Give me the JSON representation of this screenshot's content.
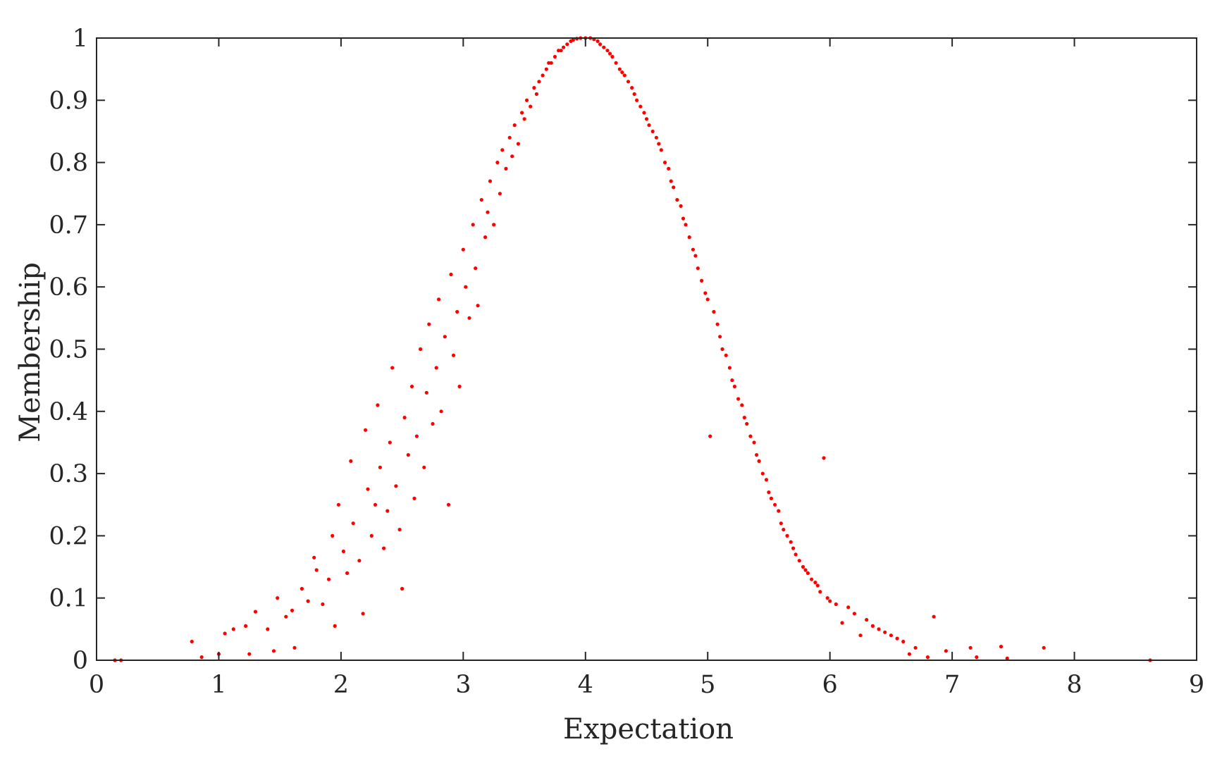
{
  "chart_data": {
    "type": "scatter",
    "title": "",
    "xlabel": "Expectation",
    "ylabel": "Membership",
    "xlim": [
      0,
      9
    ],
    "ylim": [
      0,
      1
    ],
    "x_ticks": [
      "0",
      "1",
      "2",
      "3",
      "4",
      "5",
      "6",
      "7",
      "8",
      "9"
    ],
    "y_ticks": [
      "0",
      "0.1",
      "0.2",
      "0.3",
      "0.4",
      "0.5",
      "0.6",
      "0.7",
      "0.8",
      "0.9",
      "1"
    ],
    "grid": false,
    "legend": "none",
    "marker_color": "#ff0000",
    "series": [
      {
        "points": [
          [
            0.15,
            0.0
          ],
          [
            0.2,
            0.0
          ],
          [
            0.78,
            0.03
          ],
          [
            0.86,
            0.005
          ],
          [
            1.0,
            0.01
          ],
          [
            1.05,
            0.043
          ],
          [
            1.12,
            0.05
          ],
          [
            1.22,
            0.055
          ],
          [
            1.25,
            0.01
          ],
          [
            1.3,
            0.078
          ],
          [
            1.4,
            0.05
          ],
          [
            1.45,
            0.015
          ],
          [
            1.48,
            0.1
          ],
          [
            1.55,
            0.07
          ],
          [
            1.6,
            0.08
          ],
          [
            1.62,
            0.02
          ],
          [
            1.68,
            0.115
          ],
          [
            1.73,
            0.095
          ],
          [
            1.78,
            0.165
          ],
          [
            1.8,
            0.145
          ],
          [
            1.85,
            0.09
          ],
          [
            1.9,
            0.13
          ],
          [
            1.93,
            0.2
          ],
          [
            1.95,
            0.055
          ],
          [
            1.98,
            0.25
          ],
          [
            2.02,
            0.175
          ],
          [
            2.05,
            0.14
          ],
          [
            2.08,
            0.32
          ],
          [
            2.1,
            0.22
          ],
          [
            2.15,
            0.16
          ],
          [
            2.18,
            0.075
          ],
          [
            2.2,
            0.37
          ],
          [
            2.22,
            0.275
          ],
          [
            2.25,
            0.2
          ],
          [
            2.28,
            0.25
          ],
          [
            2.3,
            0.41
          ],
          [
            2.32,
            0.31
          ],
          [
            2.35,
            0.18
          ],
          [
            2.38,
            0.24
          ],
          [
            2.4,
            0.35
          ],
          [
            2.42,
            0.47
          ],
          [
            2.45,
            0.28
          ],
          [
            2.48,
            0.21
          ],
          [
            2.5,
            0.115
          ],
          [
            2.52,
            0.39
          ],
          [
            2.55,
            0.33
          ],
          [
            2.58,
            0.44
          ],
          [
            2.6,
            0.26
          ],
          [
            2.62,
            0.36
          ],
          [
            2.65,
            0.5
          ],
          [
            2.68,
            0.31
          ],
          [
            2.7,
            0.43
          ],
          [
            2.72,
            0.54
          ],
          [
            2.75,
            0.38
          ],
          [
            2.78,
            0.47
          ],
          [
            2.8,
            0.58
          ],
          [
            2.82,
            0.4
          ],
          [
            2.85,
            0.52
          ],
          [
            2.88,
            0.25
          ],
          [
            2.9,
            0.62
          ],
          [
            2.92,
            0.49
          ],
          [
            2.95,
            0.56
          ],
          [
            2.97,
            0.44
          ],
          [
            3.0,
            0.66
          ],
          [
            3.02,
            0.6
          ],
          [
            3.05,
            0.55
          ],
          [
            3.08,
            0.7
          ],
          [
            3.1,
            0.63
          ],
          [
            3.12,
            0.57
          ],
          [
            3.15,
            0.74
          ],
          [
            3.18,
            0.68
          ],
          [
            3.2,
            0.72
          ],
          [
            3.22,
            0.77
          ],
          [
            3.25,
            0.7
          ],
          [
            3.28,
            0.8
          ],
          [
            3.3,
            0.75
          ],
          [
            3.32,
            0.82
          ],
          [
            3.35,
            0.79
          ],
          [
            3.38,
            0.84
          ],
          [
            3.4,
            0.81
          ],
          [
            3.42,
            0.86
          ],
          [
            3.45,
            0.83
          ],
          [
            3.48,
            0.88
          ],
          [
            3.5,
            0.87
          ],
          [
            3.52,
            0.9
          ],
          [
            3.55,
            0.89
          ],
          [
            3.58,
            0.92
          ],
          [
            3.6,
            0.91
          ],
          [
            3.62,
            0.93
          ],
          [
            3.65,
            0.94
          ],
          [
            3.68,
            0.95
          ],
          [
            3.7,
            0.96
          ],
          [
            3.72,
            0.96
          ],
          [
            3.75,
            0.97
          ],
          [
            3.78,
            0.98
          ],
          [
            3.8,
            0.98
          ],
          [
            3.82,
            0.985
          ],
          [
            3.85,
            0.99
          ],
          [
            3.88,
            0.995
          ],
          [
            3.9,
            0.997
          ],
          [
            3.93,
            0.999
          ],
          [
            3.96,
            1.0
          ],
          [
            4.0,
            1.0
          ],
          [
            4.04,
            1.0
          ],
          [
            4.07,
            0.998
          ],
          [
            4.1,
            0.995
          ],
          [
            4.12,
            0.99
          ],
          [
            4.15,
            0.985
          ],
          [
            4.18,
            0.98
          ],
          [
            4.2,
            0.975
          ],
          [
            4.22,
            0.97
          ],
          [
            4.25,
            0.96
          ],
          [
            4.28,
            0.95
          ],
          [
            4.3,
            0.945
          ],
          [
            4.32,
            0.94
          ],
          [
            4.35,
            0.93
          ],
          [
            4.38,
            0.92
          ],
          [
            4.4,
            0.91
          ],
          [
            4.42,
            0.9
          ],
          [
            4.45,
            0.89
          ],
          [
            4.48,
            0.88
          ],
          [
            4.5,
            0.87
          ],
          [
            4.52,
            0.86
          ],
          [
            4.55,
            0.85
          ],
          [
            4.58,
            0.84
          ],
          [
            4.6,
            0.83
          ],
          [
            4.62,
            0.82
          ],
          [
            4.65,
            0.8
          ],
          [
            4.68,
            0.79
          ],
          [
            4.7,
            0.77
          ],
          [
            4.72,
            0.76
          ],
          [
            4.75,
            0.74
          ],
          [
            4.78,
            0.73
          ],
          [
            4.8,
            0.71
          ],
          [
            4.82,
            0.7
          ],
          [
            4.85,
            0.68
          ],
          [
            4.88,
            0.66
          ],
          [
            4.9,
            0.65
          ],
          [
            4.92,
            0.63
          ],
          [
            4.95,
            0.61
          ],
          [
            4.98,
            0.59
          ],
          [
            5.0,
            0.58
          ],
          [
            5.02,
            0.36
          ],
          [
            5.05,
            0.56
          ],
          [
            5.08,
            0.54
          ],
          [
            5.1,
            0.52
          ],
          [
            5.12,
            0.5
          ],
          [
            5.15,
            0.49
          ],
          [
            5.18,
            0.47
          ],
          [
            5.2,
            0.45
          ],
          [
            5.22,
            0.44
          ],
          [
            5.25,
            0.42
          ],
          [
            5.28,
            0.41
          ],
          [
            5.3,
            0.39
          ],
          [
            5.32,
            0.38
          ],
          [
            5.35,
            0.36
          ],
          [
            5.38,
            0.35
          ],
          [
            5.4,
            0.33
          ],
          [
            5.42,
            0.32
          ],
          [
            5.45,
            0.3
          ],
          [
            5.48,
            0.29
          ],
          [
            5.5,
            0.27
          ],
          [
            5.52,
            0.26
          ],
          [
            5.55,
            0.25
          ],
          [
            5.58,
            0.24
          ],
          [
            5.6,
            0.22
          ],
          [
            5.62,
            0.21
          ],
          [
            5.65,
            0.2
          ],
          [
            5.68,
            0.19
          ],
          [
            5.7,
            0.18
          ],
          [
            5.72,
            0.17
          ],
          [
            5.75,
            0.16
          ],
          [
            5.78,
            0.15
          ],
          [
            5.8,
            0.145
          ],
          [
            5.82,
            0.14
          ],
          [
            5.85,
            0.13
          ],
          [
            5.88,
            0.125
          ],
          [
            5.9,
            0.12
          ],
          [
            5.92,
            0.11
          ],
          [
            5.95,
            0.325
          ],
          [
            5.98,
            0.1
          ],
          [
            6.0,
            0.095
          ],
          [
            6.05,
            0.09
          ],
          [
            6.1,
            0.06
          ],
          [
            6.15,
            0.085
          ],
          [
            6.2,
            0.075
          ],
          [
            6.25,
            0.04
          ],
          [
            6.3,
            0.065
          ],
          [
            6.35,
            0.055
          ],
          [
            6.4,
            0.05
          ],
          [
            6.45,
            0.045
          ],
          [
            6.5,
            0.04
          ],
          [
            6.55,
            0.035
          ],
          [
            6.6,
            0.03
          ],
          [
            6.65,
            0.01
          ],
          [
            6.7,
            0.02
          ],
          [
            6.8,
            0.005
          ],
          [
            6.85,
            0.07
          ],
          [
            6.95,
            0.015
          ],
          [
            7.15,
            0.02
          ],
          [
            7.2,
            0.005
          ],
          [
            7.4,
            0.022
          ],
          [
            7.45,
            0.003
          ],
          [
            7.75,
            0.02
          ],
          [
            8.62,
            0.0
          ]
        ]
      }
    ]
  }
}
